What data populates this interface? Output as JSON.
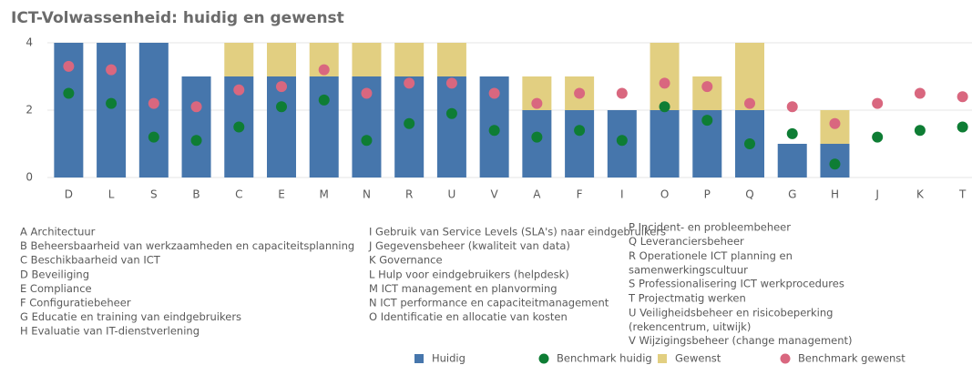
{
  "chart_data": {
    "type": "bar",
    "title": "ICT-Volwassenheid: huidig en gewenst",
    "categories": [
      "D",
      "L",
      "S",
      "B",
      "C",
      "E",
      "M",
      "N",
      "R",
      "U",
      "V",
      "A",
      "F",
      "I",
      "O",
      "P",
      "Q",
      "G",
      "H",
      "J",
      "K",
      "T"
    ],
    "series": [
      {
        "name": "Huidig",
        "kind": "bar",
        "color": "#4676ac",
        "values": [
          4,
          4,
          4,
          3,
          3,
          3,
          3,
          3,
          3,
          3,
          3,
          2,
          2,
          2,
          2,
          2,
          2,
          1,
          1,
          0,
          0,
          0
        ]
      },
      {
        "name": "Benchmark huidig",
        "kind": "dot",
        "color": "#0e7d34",
        "values": [
          2.5,
          2.2,
          1.2,
          1.1,
          1.5,
          2.1,
          2.3,
          1.1,
          1.6,
          1.9,
          1.4,
          1.2,
          1.4,
          1.1,
          2.1,
          1.7,
          1.0,
          1.3,
          0.4,
          1.2,
          1.4,
          1.5
        ]
      },
      {
        "name": "Gewenst",
        "kind": "bar",
        "color": "#e2cf81",
        "values": [
          0,
          0,
          0,
          0,
          1,
          1,
          1,
          1,
          1,
          1,
          0,
          1,
          1,
          0,
          2,
          1,
          2,
          0,
          1,
          0,
          0,
          0
        ]
      },
      {
        "name": "Benchmark gewenst",
        "kind": "dot",
        "color": "#d9677f",
        "values": [
          3.3,
          3.2,
          2.2,
          2.1,
          2.6,
          2.7,
          3.2,
          2.5,
          2.8,
          2.8,
          2.5,
          2.2,
          2.5,
          2.5,
          2.8,
          2.7,
          2.2,
          2.1,
          1.6,
          2.2,
          2.5,
          2.4
        ]
      }
    ],
    "stacked": true,
    "ylim": [
      0,
      4
    ],
    "yticks": [
      0,
      2,
      4
    ],
    "grid": true,
    "key_columns": [
      [
        "A Architectuur",
        "B Beheersbaarheid van werkzaamheden en capaciteitsplanning",
        "C Beschikbaarheid van ICT",
        "D Beveiliging",
        "E Compliance",
        "F Configuratiebeheer",
        "G Educatie en training van eindgebruikers",
        "H Evaluatie van IT-dienstverlening"
      ],
      [
        "I Gebruik van Service Levels (SLA's) naar eindgebruikers",
        "J Gegevensbeheer (kwaliteit van data)",
        "K Governance",
        "L Hulp voor eindgebruikers (helpdesk)",
        "M ICT management en planvorming",
        "N ICT performance en capaciteitmanagement",
        "O Identificatie en allocatie van kosten"
      ],
      [
        "P Incident- en probleembeheer",
        "Q Leveranciersbeheer",
        "R Operationele ICT planning en samenwerkingscultuur",
        "S Professionalisering ICT werkprocedures",
        "T Projectmatig werken",
        "U Veiligheidsbeheer en risicobeperking (rekencentrum, uitwijk)",
        "V Wijzigingsbeheer (change management)"
      ]
    ]
  }
}
